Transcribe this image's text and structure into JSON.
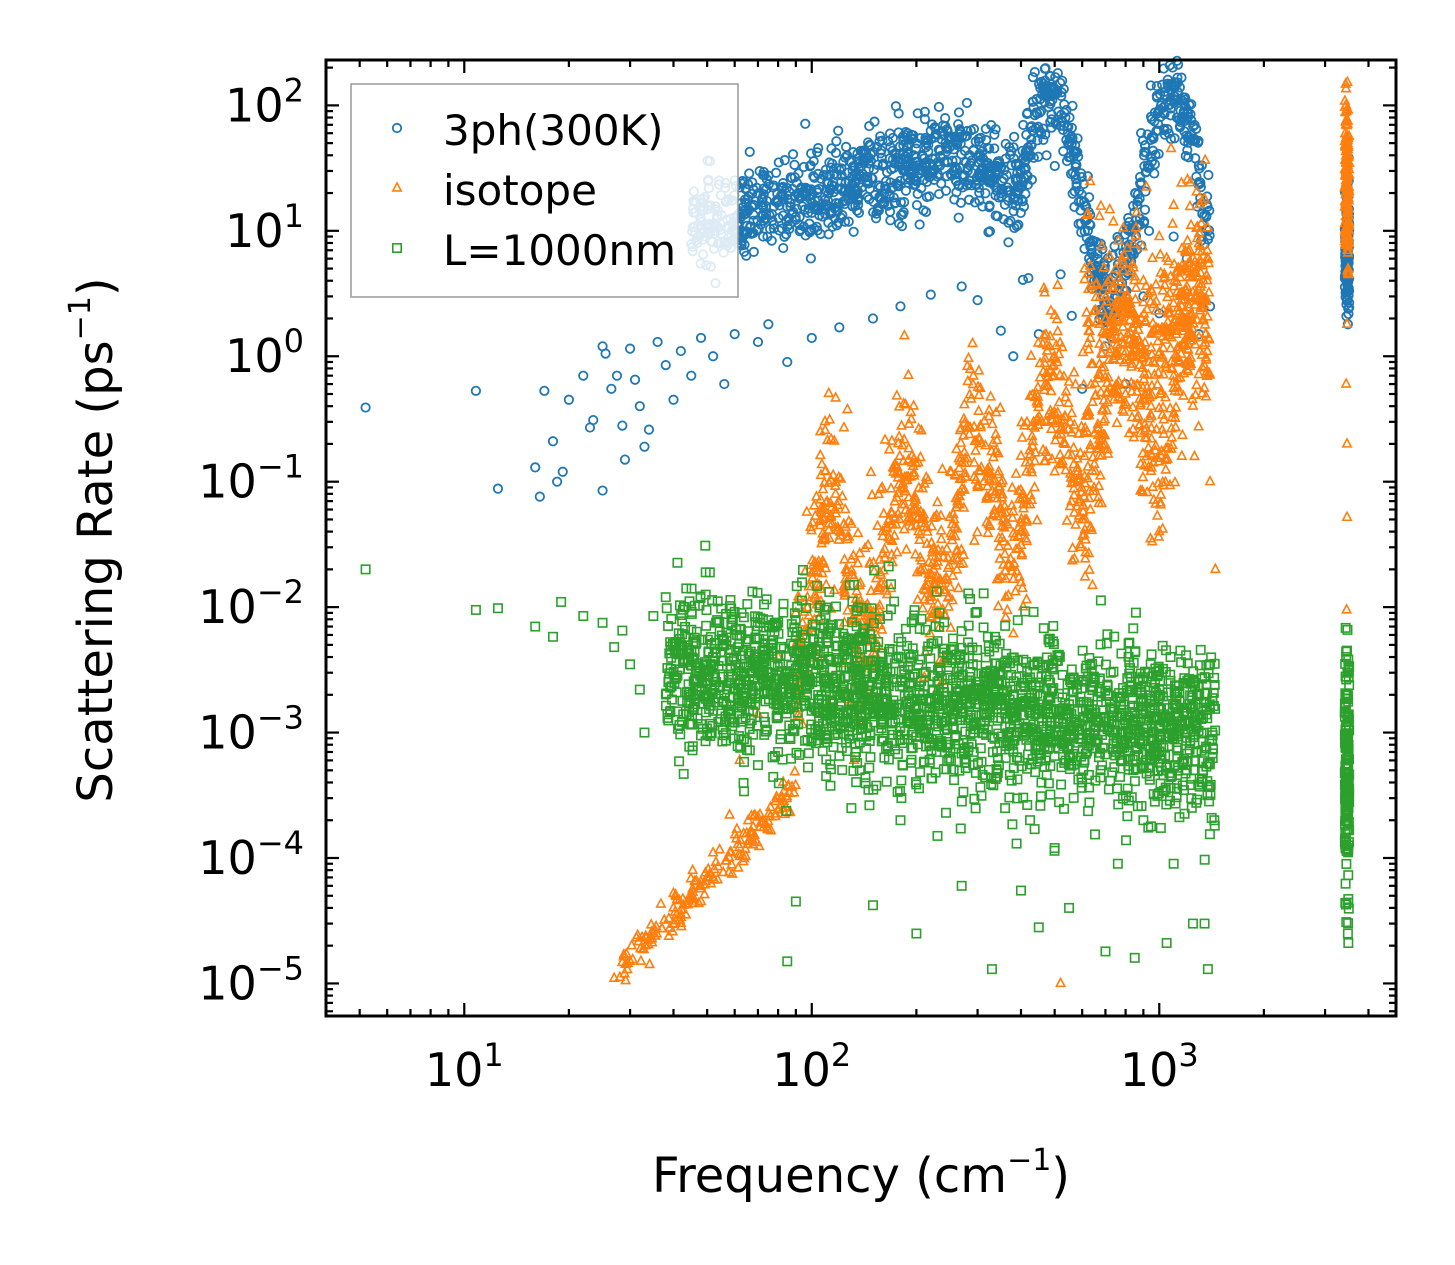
{
  "chart_data": {
    "type": "scatter",
    "title": "",
    "xlabel": "Frequency (cm",
    "xlabel_sup": "−1",
    "xlabel_end": ")",
    "ylabel": "Scattering Rate (ps",
    "ylabel_sup": "−1",
    "ylabel_end": ")",
    "xscale": "log",
    "yscale": "log",
    "xlim": [
      4,
      4800
    ],
    "ylim": [
      5.5e-06,
      230
    ],
    "x_ticks": [
      {
        "base": "10",
        "exp": "1",
        "value": 10
      },
      {
        "base": "10",
        "exp": "2",
        "value": 100
      },
      {
        "base": "10",
        "exp": "3",
        "value": 1000
      }
    ],
    "y_ticks": [
      {
        "base": "10",
        "exp": "2",
        "value": 100
      },
      {
        "base": "10",
        "exp": "1",
        "value": 10
      },
      {
        "base": "10",
        "exp": "0",
        "value": 1
      },
      {
        "base": "10",
        "exp": "−1",
        "value": 0.1
      },
      {
        "base": "10",
        "exp": "−2",
        "value": 0.01
      },
      {
        "base": "10",
        "exp": "−3",
        "value": 0.001
      },
      {
        "base": "10",
        "exp": "−4",
        "value": 0.0001
      },
      {
        "base": "10",
        "exp": "−5",
        "value": 1e-05
      }
    ],
    "legend": {
      "position": "top-left"
    },
    "series": [
      {
        "name": "3ph(300K)",
        "marker": "circle",
        "color": "#1f77b4",
        "points": [
          [
            5.2,
            0.39
          ],
          [
            10.8,
            0.53
          ],
          [
            12.5,
            0.088
          ],
          [
            16.0,
            0.13
          ],
          [
            16.5,
            0.076
          ],
          [
            17.0,
            0.53
          ],
          [
            18.0,
            0.21
          ],
          [
            18.5,
            0.1
          ],
          [
            19.2,
            0.12
          ],
          [
            20.0,
            0.45
          ],
          [
            22.0,
            0.7
          ],
          [
            23.0,
            0.27
          ],
          [
            23.5,
            0.31
          ],
          [
            25.0,
            0.085
          ],
          [
            25.0,
            1.2
          ],
          [
            25.5,
            1.05
          ],
          [
            26.5,
            0.55
          ],
          [
            27.5,
            0.7
          ],
          [
            28.5,
            0.28
          ],
          [
            29.0,
            0.15
          ],
          [
            30.0,
            1.15
          ],
          [
            31.0,
            0.65
          ],
          [
            32.0,
            0.4
          ],
          [
            33.0,
            0.19
          ],
          [
            34.0,
            0.26
          ],
          [
            36.0,
            1.3
          ],
          [
            38.0,
            0.85
          ],
          [
            40.0,
            0.45
          ],
          [
            42.0,
            1.1
          ],
          [
            45.0,
            0.7
          ],
          [
            48.0,
            1.4
          ],
          [
            52.0,
            1.0
          ],
          [
            56.0,
            0.6
          ],
          [
            60.0,
            1.5
          ],
          [
            70.0,
            1.3
          ],
          [
            75.0,
            1.8
          ],
          [
            85.0,
            0.9
          ],
          [
            100.0,
            1.4
          ],
          [
            120.0,
            1.7
          ],
          [
            150.0,
            2.0
          ],
          [
            180.0,
            2.5
          ],
          [
            220.0,
            3.1
          ],
          [
            270.0,
            3.6
          ],
          [
            300.0,
            2.8
          ],
          [
            350.0,
            1.6
          ],
          [
            380.0,
            1.0
          ],
          [
            420.0,
            4.2
          ],
          [
            450.0,
            1.5
          ],
          [
            520.0,
            4.5
          ],
          [
            560.0,
            2.1
          ],
          [
            600.0,
            0.55
          ],
          [
            650.0,
            4.0
          ],
          [
            700.0,
            1.2
          ],
          [
            800.0,
            0.6
          ],
          [
            900.0,
            3.0
          ],
          [
            1000.0,
            2.2
          ],
          [
            1100.0,
            9.0
          ],
          [
            1200.0,
            6.0
          ],
          [
            1300.0,
            1.5
          ],
          [
            1400.0,
            2.5
          ],
          [
            3450.0,
            5.5
          ],
          [
            3500.0,
            9.0
          ],
          [
            3500.0,
            3.5
          ]
        ]
      },
      {
        "name": "isotope",
        "marker": "triangle",
        "color": "#ff7f0e",
        "points": [
          [
            27.0,
            1.1e-05
          ],
          [
            30.0,
            1.5e-05
          ],
          [
            35.0,
            2.5e-05
          ],
          [
            40.0,
            4e-05
          ],
          [
            46.0,
            6.5e-05
          ],
          [
            48.0,
            4.5e-05
          ],
          [
            52.0,
            0.00011
          ],
          [
            58.0,
            0.00022
          ],
          [
            62.0,
            0.0006
          ],
          [
            70.0,
            0.0014
          ],
          [
            80.0,
            0.004
          ],
          [
            90.0,
            0.009
          ],
          [
            110.0,
            0.015
          ],
          [
            130.0,
            0.024
          ],
          [
            160.0,
            0.04
          ],
          [
            200.0,
            0.06
          ],
          [
            250.0,
            0.12
          ],
          [
            300.0,
            0.09
          ],
          [
            350.0,
            0.06
          ],
          [
            400.0,
            0.16
          ],
          [
            500.0,
            0.12
          ],
          [
            520.0,
            1e-05
          ],
          [
            560.0,
            0.35
          ],
          [
            620.0,
            0.25
          ],
          [
            660.0,
            3.8
          ],
          [
            700.0,
            1.5
          ],
          [
            750.0,
            1.0
          ],
          [
            800.0,
            0.5
          ],
          [
            860.0,
            14.0
          ],
          [
            900.0,
            4.0
          ],
          [
            950.0,
            1.5
          ],
          [
            1000.0,
            9.0
          ],
          [
            1100.0,
            16.0
          ],
          [
            1150.0,
            3.0
          ],
          [
            1250.0,
            0.4
          ],
          [
            1350.0,
            18.0
          ],
          [
            1400.0,
            0.1
          ],
          [
            1450.0,
            0.02
          ],
          [
            3450.0,
            100.0
          ],
          [
            3450.0,
            0.6
          ],
          [
            3470.0,
            0.2
          ],
          [
            3470.0,
            0.052
          ],
          [
            3460.0,
            0.0095
          ],
          [
            3470.0,
            1.8
          ],
          [
            3480.0,
            50.0
          ]
        ]
      },
      {
        "name": "L=1000nm",
        "marker": "square",
        "color": "#2ca02c",
        "points": [
          [
            5.2,
            0.02
          ],
          [
            10.8,
            0.0095
          ],
          [
            12.5,
            0.0098
          ],
          [
            16.0,
            0.007
          ],
          [
            18.0,
            0.0058
          ],
          [
            19.0,
            0.011
          ],
          [
            22.0,
            0.0085
          ],
          [
            25.0,
            0.0075
          ],
          [
            27.0,
            0.0048
          ],
          [
            28.5,
            0.0065
          ],
          [
            30.0,
            0.0035
          ],
          [
            32.0,
            0.0022
          ],
          [
            33.0,
            0.001
          ],
          [
            35.0,
            0.0085
          ],
          [
            38.0,
            0.012
          ],
          [
            42.0,
            0.0042
          ],
          [
            45.0,
            0.0066
          ],
          [
            48.0,
            0.00095
          ],
          [
            52.0,
            0.004
          ],
          [
            56.0,
            0.002
          ],
          [
            60.0,
            0.0012
          ],
          [
            65.0,
            0.00085
          ],
          [
            70.0,
            0.00055
          ],
          [
            80.0,
            0.0007
          ],
          [
            85.0,
            1.5e-05
          ],
          [
            90.0,
            4.5e-05
          ],
          [
            100.0,
            0.0009
          ],
          [
            110.0,
            0.00045
          ],
          [
            130.0,
            0.00025
          ],
          [
            150.0,
            4.2e-05
          ],
          [
            180.0,
            0.0002
          ],
          [
            200.0,
            2.5e-05
          ],
          [
            230.0,
            0.00015
          ],
          [
            270.0,
            6e-05
          ],
          [
            330.0,
            1.3e-05
          ],
          [
            360.0,
            0.00025
          ],
          [
            400.0,
            5.5e-05
          ],
          [
            450.0,
            2.8e-05
          ],
          [
            480.0,
            0.0055
          ],
          [
            500.0,
            0.00012
          ],
          [
            550.0,
            4e-05
          ],
          [
            600.0,
            0.0004
          ],
          [
            650.0,
            0.0025
          ],
          [
            700.0,
            1.8e-05
          ],
          [
            760.0,
            9e-05
          ],
          [
            800.0,
            0.0012
          ],
          [
            850.0,
            1.6e-05
          ],
          [
            900.0,
            0.0002
          ],
          [
            950.0,
            0.0042
          ],
          [
            1000.0,
            0.0007
          ],
          [
            1050.0,
            2.1e-05
          ],
          [
            1100.0,
            9e-05
          ],
          [
            1150.0,
            0.0045
          ],
          [
            1200.0,
            0.0005
          ],
          [
            1250.0,
            3e-05
          ],
          [
            1350.0,
            3e-05
          ],
          [
            1380.0,
            1.3e-05
          ],
          [
            1400.0,
            0.0035
          ],
          [
            1420.0,
            0.001
          ],
          [
            1440.0,
            0.0002
          ],
          [
            3450.0,
            0.004
          ],
          [
            3460.0,
            0.002
          ],
          [
            3470.0,
            0.0006
          ],
          [
            3480.0,
            0.0002
          ],
          [
            3490.0,
            2.5e-05
          ],
          [
            3500.0,
            2.1e-05
          ]
        ]
      }
    ]
  }
}
